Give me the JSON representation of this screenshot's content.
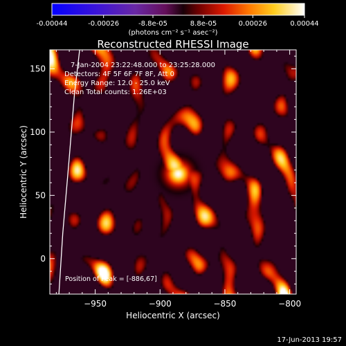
{
  "chart_data": {
    "type": "heatmap",
    "title": "Reconstructed RHESSI Image",
    "xlabel": "Heliocentric X (arcsec)",
    "ylabel": "Heliocentric Y (arcsec)",
    "xlim": [
      -985,
      -795
    ],
    "ylim": [
      -28,
      165
    ],
    "xticks": [
      -950,
      -900,
      -850,
      -800
    ],
    "yticks": [
      0,
      50,
      100,
      150
    ],
    "colorbar": {
      "range": [
        -0.00044,
        0.00044
      ],
      "ticks": [
        {
          "value": -0.00044,
          "label": "-0.00044"
        },
        {
          "value": -0.00026,
          "label": "-0.00026"
        },
        {
          "value": -8.8e-05,
          "label": "-8.8e-05"
        },
        {
          "value": 8.8e-05,
          "label": "8.8e-05"
        },
        {
          "value": 0.00026,
          "label": "0.00026"
        },
        {
          "value": 0.00044,
          "label": "0.00044"
        }
      ],
      "unit_label": "(photons cm⁻² s⁻¹ asec⁻²)"
    },
    "annotations": [
      "7-Jan-2004 23:22:48.000 to 23:25:28.000",
      "Detectors: 4F 5F 6F 7F 8F, Att 0",
      "Energy Range: 12.0 - 25.0 keV",
      "Clean     Total counts: 1.26E+03"
    ],
    "peak_label": "Position of Peak = [-886,67]",
    "peak": {
      "x": -886,
      "y": 67,
      "value": 0.00044
    },
    "sources": [
      {
        "x": -886,
        "y": 67,
        "value": 0.0003,
        "sigma": 9
      },
      {
        "x": -896,
        "y": 100,
        "value": 0.00022,
        "sigma": 8
      },
      {
        "x": -872,
        "y": 118,
        "value": 0.00016,
        "sigma": 9
      },
      {
        "x": -922,
        "y": 88,
        "value": 0.00017,
        "sigma": 9
      },
      {
        "x": -923,
        "y": 28,
        "value": 0.00019,
        "sigma": 9
      },
      {
        "x": -866,
        "y": 32,
        "value": 0.00014,
        "sigma": 8
      },
      {
        "x": -845,
        "y": 65,
        "value": 0.00013,
        "sigma": 8
      },
      {
        "x": -918,
        "y": 148,
        "value": 0.00015,
        "sigma": 9
      },
      {
        "x": -958,
        "y": 142,
        "value": 0.00014,
        "sigma": 9
      },
      {
        "x": -957,
        "y": 120,
        "value": 0.00012,
        "sigma": 8
      },
      {
        "x": -944,
        "y": 58,
        "value": 0.0001,
        "sigma": 8
      },
      {
        "x": -900,
        "y": -3,
        "value": 0.00012,
        "sigma": 8
      },
      {
        "x": -868,
        "y": -12,
        "value": 0.00013,
        "sigma": 8
      },
      {
        "x": -848,
        "y": 0,
        "value": 0.00011,
        "sigma": 7
      },
      {
        "x": -832,
        "y": 150,
        "value": 0.0001,
        "sigma": 8
      },
      {
        "x": -816,
        "y": 105,
        "value": 9e-05,
        "sigma": 7
      },
      {
        "x": -828,
        "y": 12,
        "value": 9e-05,
        "sigma": 7
      },
      {
        "x": -946,
        "y": -8,
        "value": 9e-05,
        "sigma": 8
      },
      {
        "x": -970,
        "y": 30,
        "value": 7e-05,
        "sigma": 7
      },
      {
        "x": -845,
        "y": 125,
        "value": 8e-05,
        "sigma": 7
      }
    ],
    "limb_curve": [
      {
        "x": -978,
        "y": -28
      },
      {
        "x": -975,
        "y": 20
      },
      {
        "x": -970,
        "y": 80
      },
      {
        "x": -966,
        "y": 130
      },
      {
        "x": -962,
        "y": 165
      }
    ],
    "grid": false
  },
  "footer": {
    "date": "17-Jun-2013 19:57"
  }
}
